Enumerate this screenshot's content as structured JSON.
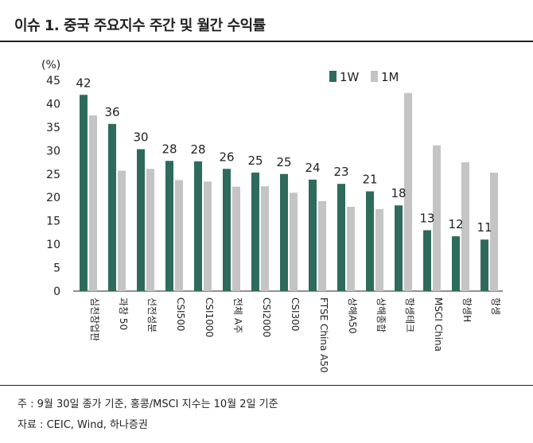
{
  "title": "이슈 1. 중국 주요지수 주간 및 월간 수익률",
  "notes": {
    "note": "주 : 9월 30일 종가 기준, 홍콩/MSCI 지수는 10월 2일 기준",
    "source": "자료 : CEIC, Wind, 하나증권"
  },
  "colors": {
    "1W": "#2e6b5c",
    "1M": "#c4c4c4"
  },
  "chart_data": {
    "type": "bar",
    "unit_label": "(%)",
    "ylim": [
      0,
      45
    ],
    "yticks": [
      0,
      5,
      10,
      15,
      20,
      25,
      30,
      35,
      40,
      45
    ],
    "grid": false,
    "legend_position": "top-right",
    "categories": [
      "심천창업판",
      "과창 50",
      "선전성분",
      "CSI500",
      "CSI1000",
      "전체 A주",
      "CSI2000",
      "CSI300",
      "FTSE China A50",
      "상해A50",
      "상해종합",
      "항셍테크",
      "MSCI China",
      "항셍H",
      "항셍"
    ],
    "series": [
      {
        "name": "1W",
        "values": [
          41.9,
          35.7,
          30.3,
          27.8,
          27.7,
          26.1,
          25.3,
          25.0,
          23.8,
          22.9,
          21.3,
          18.3,
          13.0,
          11.7,
          11.0
        ],
        "labels": [
          "42",
          "36",
          "30",
          "28",
          "28",
          "26",
          "25",
          "25",
          "24",
          "23",
          "21",
          "18",
          "13",
          "12",
          "11"
        ]
      },
      {
        "name": "1M",
        "values": [
          37.5,
          25.7,
          26.1,
          23.7,
          23.4,
          22.3,
          22.4,
          21.0,
          19.2,
          18.0,
          17.5,
          42.3,
          31.1,
          27.5,
          25.3
        ]
      }
    ]
  }
}
